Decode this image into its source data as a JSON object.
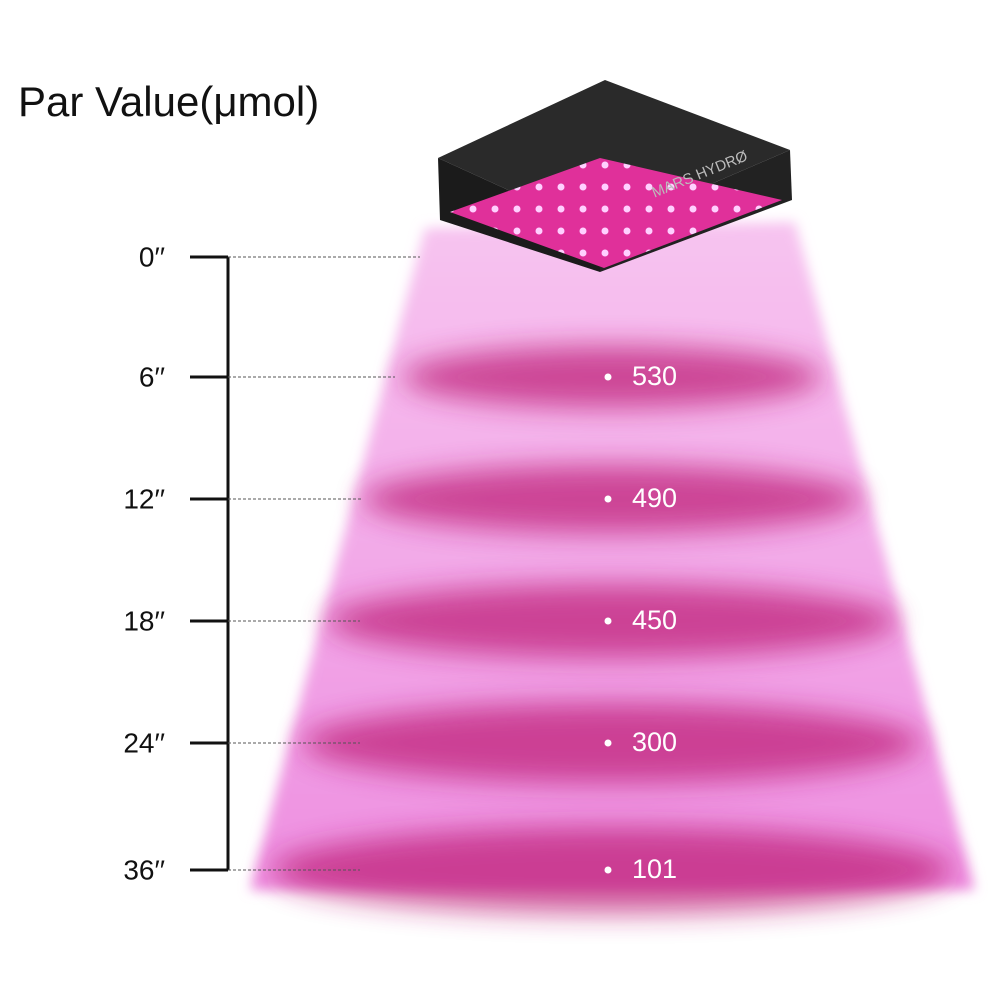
{
  "title": "Par Value(μmol)",
  "brand": "MARS HYDRØ",
  "levels": [
    {
      "height": "0′′"
    },
    {
      "height": "6′′",
      "par": 530
    },
    {
      "height": "12′′",
      "par": 490
    },
    {
      "height": "18′′",
      "par": 450
    },
    {
      "height": "24′′",
      "par": 300
    },
    {
      "height": "36′′",
      "par": 101
    }
  ]
}
